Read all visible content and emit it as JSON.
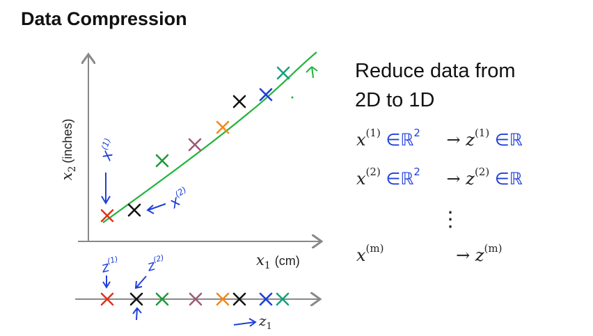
{
  "title": "Data Compression",
  "heading": {
    "line1": "Reduce data from",
    "line2": "2D to 1D"
  },
  "axes": {
    "ylabel_var": "x",
    "ylabel_sub": "2",
    "ylabel_unit": "(inches)",
    "xlabel_var": "x",
    "xlabel_sub": "1",
    "xlabel_unit": "(cm)"
  },
  "annotations": {
    "x1": "x",
    "x1_sup": "(1)",
    "x2": "x",
    "x2_sup": "(2)",
    "z1": "z",
    "z1_sup": "(1)",
    "z2": "z",
    "z2_sup": "(2)",
    "line_label_var": "z",
    "line_label_sub": "1"
  },
  "equations": [
    {
      "lhs": "x",
      "lhs_sup": "(1)",
      "lhs_set": "∈ℝ",
      "lhs_set_sup": "2",
      "rhs": "z",
      "rhs_sup": "(1)",
      "rhs_set": "∈ℝ"
    },
    {
      "lhs": "x",
      "lhs_sup": "(2)",
      "lhs_set": "∈ℝ",
      "lhs_set_sup": "2",
      "rhs": "z",
      "rhs_sup": "(2)",
      "rhs_set": "∈ℝ"
    },
    {
      "lhs": "x",
      "lhs_sup": "(m)",
      "lhs_set": "",
      "lhs_set_sup": "",
      "rhs": "z",
      "rhs_sup": "(m)",
      "rhs_set": ""
    }
  ],
  "vdots": "⋮",
  "arrow_glyph": "→",
  "colors": {
    "line": "#22b33a",
    "red": "#e0341c",
    "black": "#111111",
    "green": "#1e9a3a",
    "mauve": "#9c5b76",
    "orange": "#f08a1c",
    "blue": "#1f3fd8",
    "teal": "#16a07a",
    "axis": "#888888",
    "ink": "#1f3fd8"
  }
}
